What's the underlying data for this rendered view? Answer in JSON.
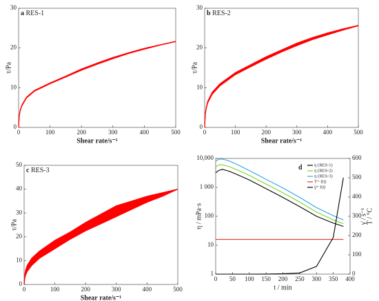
{
  "chart_data": [
    {
      "type": "band",
      "panel": "a",
      "title": "RES-1",
      "xlabel": "Shear rate/s⁻¹",
      "ylabel": "τ/Pa",
      "x": [
        0,
        2,
        5,
        10,
        25,
        50,
        100,
        150,
        200,
        250,
        300,
        350,
        400,
        450,
        500
      ],
      "series": [
        {
          "color": "#ff0000",
          "values": [
            0,
            3.0,
            4.3,
            5.6,
            7.6,
            9.3,
            11.2,
            12.9,
            14.7,
            16.2,
            17.6,
            18.8,
            19.9,
            20.8,
            21.7
          ]
        },
        {
          "color": "#ff0000",
          "values": [
            0,
            2.8,
            4.1,
            5.4,
            7.4,
            9.1,
            11.0,
            12.7,
            14.4,
            15.9,
            17.3,
            18.6,
            19.7,
            20.7,
            21.6
          ]
        }
      ],
      "xlim": [
        0,
        500
      ],
      "xticks": [
        0,
        100,
        200,
        300,
        400,
        500
      ],
      "ylim": [
        0,
        30
      ],
      "yticks": [
        0,
        10,
        20,
        30
      ]
    },
    {
      "type": "band",
      "panel": "b",
      "title": "RES-2",
      "xlabel": "Shear rate/s⁻¹",
      "ylabel": "τ/Pa",
      "x": [
        0,
        2,
        5,
        10,
        25,
        50,
        100,
        150,
        200,
        250,
        300,
        350,
        400,
        450,
        500
      ],
      "series": [
        {
          "color": "#ff0000",
          "values": [
            0,
            3.5,
            5.0,
            6.6,
            8.9,
            11.0,
            13.8,
            15.8,
            17.8,
            19.5,
            21.2,
            22.6,
            23.8,
            24.8,
            25.7
          ]
        },
        {
          "color": "#ff0000",
          "values": [
            0,
            3.2,
            4.7,
            6.2,
            8.4,
            10.5,
            13.3,
            15.3,
            17.2,
            19.0,
            20.6,
            22.1,
            23.3,
            24.5,
            25.6
          ]
        }
      ],
      "xlim": [
        0,
        500
      ],
      "xticks": [
        0,
        100,
        200,
        300,
        400,
        500
      ],
      "ylim": [
        0,
        30
      ],
      "yticks": [
        0,
        10,
        20,
        30
      ]
    },
    {
      "type": "band",
      "panel": "c",
      "title": "RES-3",
      "xlabel": "Shear rate/s⁻¹",
      "ylabel": "τ/Pa",
      "x": [
        0,
        2,
        5,
        10,
        25,
        50,
        100,
        150,
        200,
        250,
        300,
        350,
        400,
        450,
        500
      ],
      "series": [
        {
          "color": "#ff0000",
          "values": [
            0,
            4.0,
            6.0,
            8.0,
            11.0,
            14.0,
            18.5,
            22.0,
            26.0,
            29.5,
            33.0,
            35.0,
            37.0,
            38.5,
            40.0
          ]
        },
        {
          "color": "#ff0000",
          "values": [
            0,
            2.5,
            4.0,
            5.5,
            8.0,
            11.0,
            15.0,
            19.0,
            22.5,
            25.5,
            28.5,
            31.5,
            34.5,
            37.0,
            40.0
          ]
        }
      ],
      "xlim": [
        0,
        500
      ],
      "xticks": [
        0,
        100,
        200,
        300,
        400,
        500
      ],
      "ylim": [
        0,
        50
      ],
      "yticks": [
        0,
        10,
        20,
        30,
        40,
        50
      ]
    },
    {
      "type": "line",
      "panel": "d",
      "xlabel": "t / min",
      "ylabel": "η / mPa·s",
      "y2labels": [
        "γ̇ / s⁻¹",
        "T / °C"
      ],
      "ylog": true,
      "legend": "top-right",
      "x": [
        0,
        10,
        20,
        40,
        60,
        100,
        150,
        200,
        250,
        300,
        350,
        380
      ],
      "series": [
        {
          "name": "η (RES-1)",
          "color": "#000000",
          "values": [
            3200,
            3900,
            4200,
            3600,
            2900,
            1800,
            900,
            450,
            215,
            100,
            58,
            45
          ]
        },
        {
          "name": "η (RES-2)",
          "color": "#7ed321",
          "values": [
            5000,
            6000,
            6000,
            5200,
            4200,
            2600,
            1300,
            650,
            310,
            140,
            75,
            55
          ]
        },
        {
          "name": "η (RES-3)",
          "color": "#29a3e8",
          "values": [
            8000,
            9500,
            9500,
            8200,
            6500,
            3800,
            1900,
            950,
            450,
            200,
            105,
            75
          ]
        },
        {
          "name": "T= f(t)",
          "color": "#e8352b",
          "axis": "y2",
          "values": [
            180,
            180,
            180,
            180,
            180,
            180,
            180,
            180,
            180,
            180,
            180,
            180
          ]
        },
        {
          "name": "γ̇= f(t)",
          "color": "#000000",
          "axis": "y2",
          "values": [
            0,
            0,
            0,
            0,
            0,
            0,
            0.5,
            2,
            6,
            40,
            190,
            500
          ]
        }
      ],
      "xlim": [
        0,
        400
      ],
      "xticks": [
        0,
        50,
        100,
        150,
        200,
        250,
        300,
        350,
        400
      ],
      "ylim": [
        1,
        10000
      ],
      "yticks": [
        1,
        10,
        100,
        {
          "value": 1000,
          "label": "1 000"
        },
        {
          "value": 10000,
          "label": "10,000"
        }
      ],
      "y2lim": [
        0,
        600
      ],
      "y2ticks": [
        0,
        100,
        200,
        300,
        400,
        500,
        600
      ]
    }
  ]
}
